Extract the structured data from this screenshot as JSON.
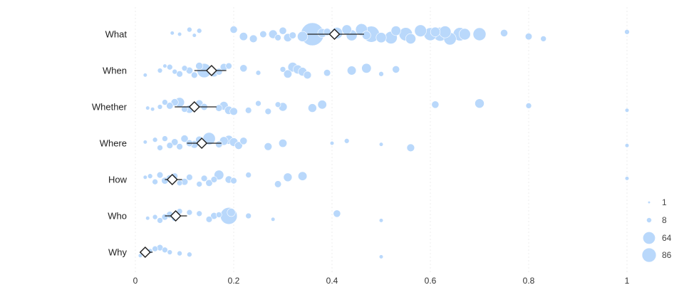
{
  "chart_data": {
    "type": "scatter",
    "title": "",
    "xlabel": "",
    "ylabel": "",
    "xlim": [
      0,
      1
    ],
    "x_ticks": [
      0,
      0.2,
      0.4,
      0.6,
      0.8,
      1
    ],
    "x_tick_labels": [
      "0",
      "0.2",
      "0.4",
      "0.6",
      "0.8",
      "1"
    ],
    "grid": true,
    "legend_placement": "bottom-right",
    "colors": {
      "points": "#b9d8fb",
      "mean_marker": "#222222"
    },
    "size_legend": [
      {
        "label": "1",
        "value": 1
      },
      {
        "label": "8",
        "value": 8
      },
      {
        "label": "64",
        "value": 64
      },
      {
        "label": "86",
        "value": 86
      }
    ],
    "categories": [
      "What",
      "When",
      "Whether",
      "Where",
      "How",
      "Who",
      "Why"
    ],
    "series": [
      {
        "category": "What",
        "mean": 0.405,
        "ci": [
          0.35,
          0.465
        ],
        "points": [
          [
            0.075,
            1
          ],
          [
            0.09,
            1
          ],
          [
            0.11,
            2
          ],
          [
            0.12,
            1
          ],
          [
            0.13,
            2
          ],
          [
            0.2,
            6
          ],
          [
            0.22,
            8
          ],
          [
            0.24,
            7
          ],
          [
            0.26,
            5
          ],
          [
            0.28,
            9
          ],
          [
            0.29,
            4
          ],
          [
            0.3,
            6
          ],
          [
            0.31,
            8
          ],
          [
            0.32,
            5
          ],
          [
            0.34,
            14
          ],
          [
            0.36,
            86
          ],
          [
            0.38,
            10
          ],
          [
            0.39,
            6
          ],
          [
            0.41,
            18
          ],
          [
            0.43,
            12
          ],
          [
            0.44,
            16
          ],
          [
            0.46,
            20
          ],
          [
            0.47,
            9
          ],
          [
            0.48,
            40
          ],
          [
            0.5,
            14
          ],
          [
            0.52,
            22
          ],
          [
            0.53,
            12
          ],
          [
            0.55,
            26
          ],
          [
            0.56,
            14
          ],
          [
            0.58,
            20
          ],
          [
            0.6,
            24
          ],
          [
            0.61,
            12
          ],
          [
            0.62,
            28
          ],
          [
            0.63,
            20
          ],
          [
            0.64,
            22
          ],
          [
            0.66,
            26
          ],
          [
            0.67,
            18
          ],
          [
            0.7,
            24
          ],
          [
            0.75,
            6
          ],
          [
            0.8,
            5
          ],
          [
            0.83,
            3
          ],
          [
            1.0,
            2
          ]
        ]
      },
      {
        "category": "When",
        "mean": 0.155,
        "ci": [
          0.12,
          0.185
        ],
        "points": [
          [
            0.02,
            1
          ],
          [
            0.05,
            2
          ],
          [
            0.06,
            1
          ],
          [
            0.07,
            3
          ],
          [
            0.08,
            2
          ],
          [
            0.09,
            4
          ],
          [
            0.1,
            3
          ],
          [
            0.11,
            5
          ],
          [
            0.12,
            4
          ],
          [
            0.13,
            6
          ],
          [
            0.14,
            30
          ],
          [
            0.16,
            8
          ],
          [
            0.17,
            5
          ],
          [
            0.18,
            6
          ],
          [
            0.19,
            4
          ],
          [
            0.22,
            6
          ],
          [
            0.25,
            2
          ],
          [
            0.3,
            3
          ],
          [
            0.31,
            8
          ],
          [
            0.32,
            12
          ],
          [
            0.33,
            10
          ],
          [
            0.34,
            9
          ],
          [
            0.35,
            7
          ],
          [
            0.39,
            5
          ],
          [
            0.44,
            10
          ],
          [
            0.47,
            12
          ],
          [
            0.5,
            2
          ],
          [
            0.53,
            6
          ]
        ]
      },
      {
        "category": "Whether",
        "mean": 0.12,
        "ci": [
          0.08,
          0.165
        ],
        "points": [
          [
            0.025,
            1
          ],
          [
            0.035,
            1
          ],
          [
            0.05,
            2
          ],
          [
            0.06,
            3
          ],
          [
            0.07,
            5
          ],
          [
            0.08,
            6
          ],
          [
            0.09,
            12
          ],
          [
            0.1,
            4
          ],
          [
            0.11,
            8
          ],
          [
            0.13,
            6
          ],
          [
            0.14,
            5
          ],
          [
            0.17,
            5
          ],
          [
            0.18,
            9
          ],
          [
            0.19,
            8
          ],
          [
            0.2,
            7
          ],
          [
            0.23,
            4
          ],
          [
            0.25,
            3
          ],
          [
            0.27,
            4
          ],
          [
            0.29,
            3
          ],
          [
            0.3,
            9
          ],
          [
            0.36,
            9
          ],
          [
            0.38,
            10
          ],
          [
            0.61,
            6
          ],
          [
            0.7,
            11
          ],
          [
            0.8,
            3
          ],
          [
            1.0,
            1
          ]
        ]
      },
      {
        "category": "Where",
        "mean": 0.135,
        "ci": [
          0.105,
          0.175
        ],
        "points": [
          [
            0.02,
            1
          ],
          [
            0.04,
            2
          ],
          [
            0.05,
            3
          ],
          [
            0.06,
            3
          ],
          [
            0.07,
            4
          ],
          [
            0.08,
            5
          ],
          [
            0.09,
            4
          ],
          [
            0.1,
            6
          ],
          [
            0.11,
            5
          ],
          [
            0.12,
            7
          ],
          [
            0.13,
            6
          ],
          [
            0.15,
            22
          ],
          [
            0.17,
            5
          ],
          [
            0.18,
            9
          ],
          [
            0.19,
            10
          ],
          [
            0.2,
            9
          ],
          [
            0.21,
            7
          ],
          [
            0.22,
            6
          ],
          [
            0.27,
            7
          ],
          [
            0.3,
            8
          ],
          [
            0.4,
            1
          ],
          [
            0.43,
            2
          ],
          [
            0.5,
            1
          ],
          [
            0.56,
            7
          ],
          [
            1.0,
            1
          ]
        ]
      },
      {
        "category": "How",
        "mean": 0.075,
        "ci": [
          0.06,
          0.095
        ],
        "points": [
          [
            0.02,
            1
          ],
          [
            0.03,
            2
          ],
          [
            0.04,
            3
          ],
          [
            0.05,
            4
          ],
          [
            0.06,
            5
          ],
          [
            0.07,
            6
          ],
          [
            0.08,
            4
          ],
          [
            0.09,
            3
          ],
          [
            0.1,
            5
          ],
          [
            0.11,
            4
          ],
          [
            0.13,
            3
          ],
          [
            0.14,
            4
          ],
          [
            0.15,
            5
          ],
          [
            0.16,
            4
          ],
          [
            0.17,
            12
          ],
          [
            0.19,
            6
          ],
          [
            0.2,
            4
          ],
          [
            0.23,
            3
          ],
          [
            0.29,
            5
          ],
          [
            0.31,
            9
          ],
          [
            0.34,
            10
          ],
          [
            1.0,
            1
          ]
        ]
      },
      {
        "category": "Who",
        "mean": 0.082,
        "ci": [
          0.06,
          0.105
        ],
        "points": [
          [
            0.025,
            1
          ],
          [
            0.04,
            2
          ],
          [
            0.05,
            3
          ],
          [
            0.06,
            4
          ],
          [
            0.07,
            5
          ],
          [
            0.08,
            4
          ],
          [
            0.09,
            3
          ],
          [
            0.11,
            3
          ],
          [
            0.13,
            3
          ],
          [
            0.15,
            4
          ],
          [
            0.16,
            5
          ],
          [
            0.17,
            3
          ],
          [
            0.19,
            44
          ],
          [
            0.195,
            8
          ],
          [
            0.23,
            3
          ],
          [
            0.28,
            1
          ],
          [
            0.41,
            6
          ],
          [
            0.5,
            1
          ]
        ]
      },
      {
        "category": "Why",
        "mean": 0.02,
        "ci": [
          0.012,
          0.035
        ],
        "points": [
          [
            0.01,
            1
          ],
          [
            0.03,
            2
          ],
          [
            0.04,
            3
          ],
          [
            0.05,
            4
          ],
          [
            0.06,
            3
          ],
          [
            0.07,
            2
          ],
          [
            0.09,
            2
          ],
          [
            0.11,
            2
          ],
          [
            0.5,
            1
          ]
        ]
      }
    ]
  }
}
